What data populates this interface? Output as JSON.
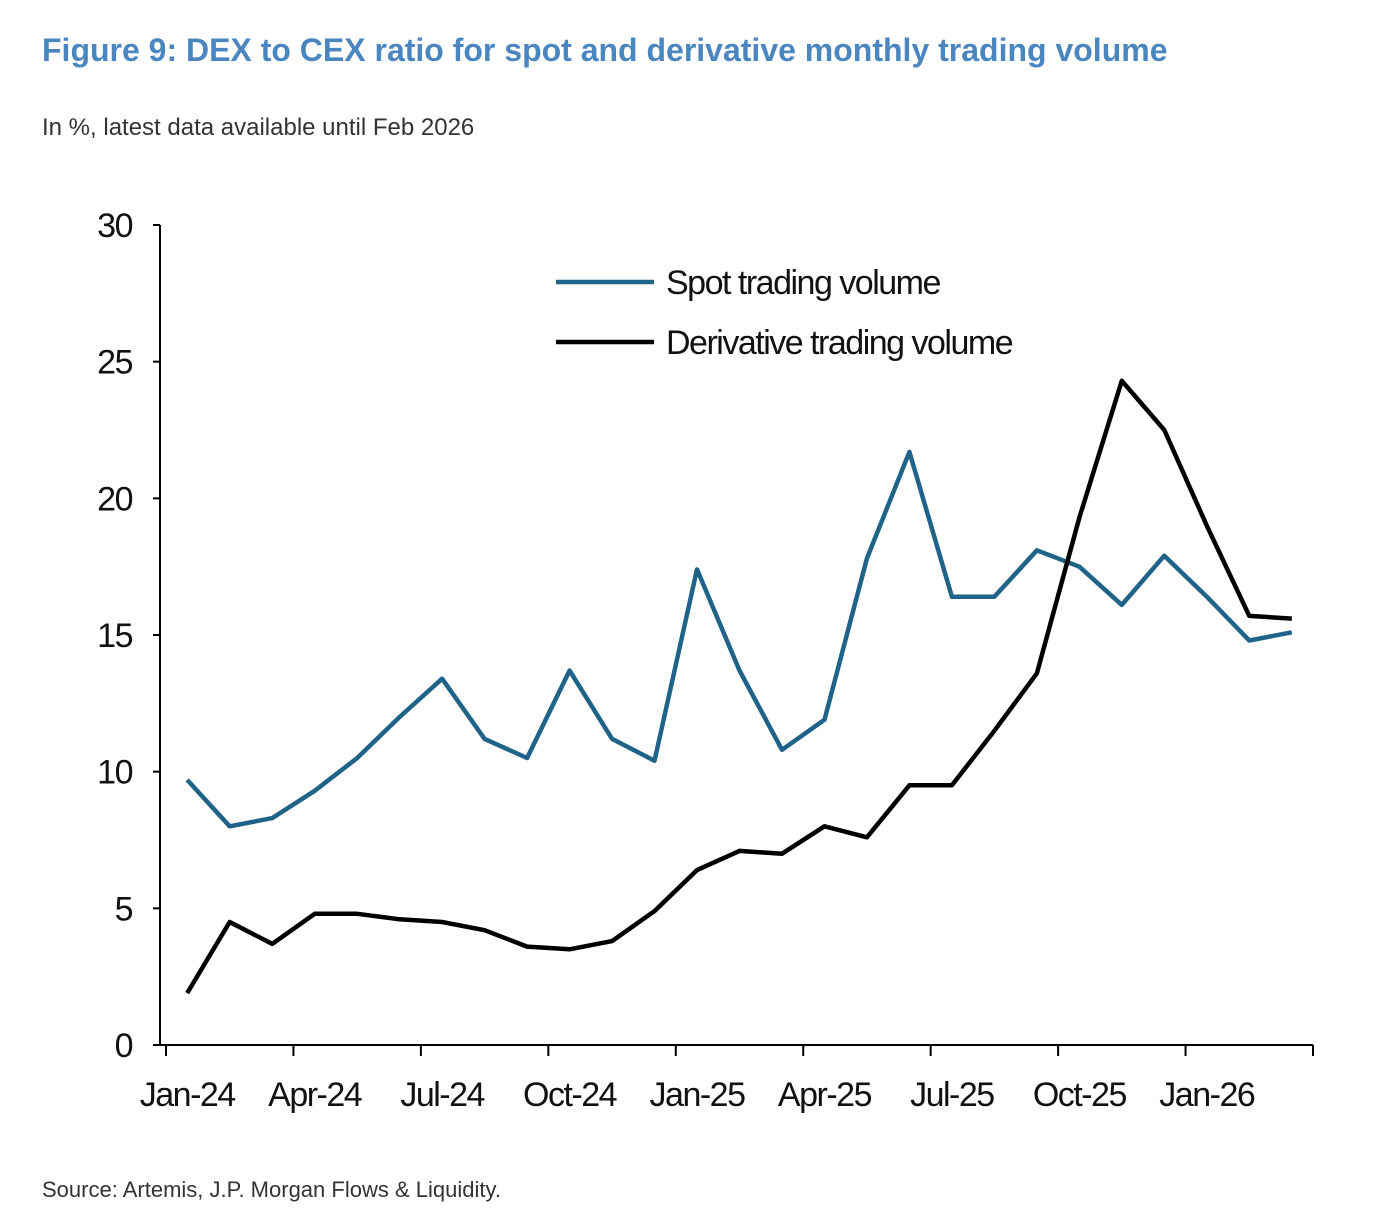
{
  "chart_data": {
    "type": "line",
    "title": "Figure 9: DEX to CEX ratio for spot and derivative monthly trading volume",
    "subtitle": "In %, latest data available until Feb 2026",
    "source": "Source: Artemis, J.P. Morgan Flows & Liquidity.",
    "categories": [
      "Jan-24",
      null,
      null,
      "Apr-24",
      null,
      null,
      "Jul-24",
      null,
      null,
      "Oct-24",
      null,
      null,
      "Jan-25",
      null,
      null,
      "Apr-25",
      null,
      null,
      "Jul-25",
      null,
      null,
      "Oct-25",
      null,
      null,
      "Jan-26",
      null,
      null
    ],
    "series": [
      {
        "name": "Spot trading volume",
        "color": "#1f6389",
        "values": [
          9.7,
          8.0,
          8.3,
          9.3,
          10.5,
          12.0,
          13.4,
          11.2,
          10.5,
          13.7,
          11.2,
          10.4,
          17.4,
          13.7,
          10.8,
          11.9,
          17.8,
          21.7,
          16.4,
          16.4,
          18.1,
          17.5,
          16.1,
          17.9,
          16.4,
          14.8,
          15.1
        ]
      },
      {
        "name": "Derivative trading volume",
        "color": "#000000",
        "values": [
          1.9,
          4.5,
          3.7,
          4.8,
          4.8,
          4.6,
          4.5,
          4.2,
          3.6,
          3.5,
          3.8,
          4.9,
          6.4,
          7.1,
          7.0,
          8.0,
          7.6,
          9.5,
          9.5,
          11.5,
          13.6,
          19.3,
          24.3,
          22.5,
          19.0,
          15.7,
          15.6
        ]
      }
    ],
    "ylim": [
      0,
      30
    ],
    "yticks": [
      0,
      5,
      10,
      15,
      20,
      25,
      30
    ],
    "grid": false,
    "legend": "top"
  }
}
